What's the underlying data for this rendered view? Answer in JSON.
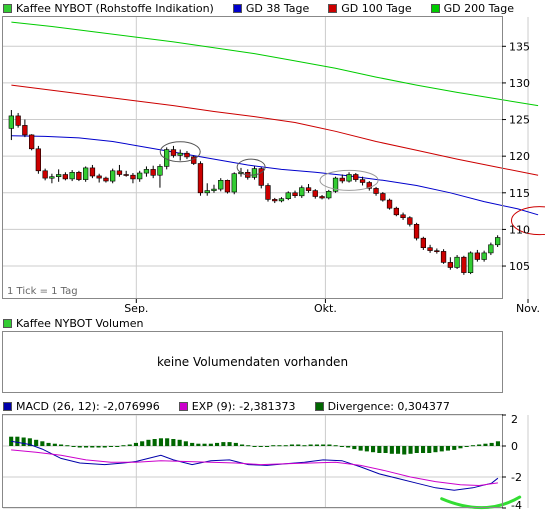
{
  "colors": {
    "price_up": "#33cc33",
    "price_down": "#cc0000",
    "gd38": "#0000cc",
    "gd100": "#cc0000",
    "gd200": "#00cc00",
    "volume_swatch": "#33cc33",
    "macd": "#0000aa",
    "exp": "#cc00cc",
    "divergence": "#006600",
    "annotation_gray": "#555555",
    "annotation_red": "#cc0000",
    "annotation_green": "#33dd33",
    "grid": "#cccccc"
  },
  "top_legend": [
    {
      "label": "Kaffee NYBOT (Rohstoffe Indikation)",
      "color": "#33cc33"
    },
    {
      "label": "GD 38 Tage",
      "color": "#0000cc"
    },
    {
      "label": "GD 100 Tage",
      "color": "#cc0000"
    },
    {
      "label": "GD 200 Tage",
      "color": "#00cc00"
    }
  ],
  "volume_legend": {
    "label": "Kaffee NYBOT Volumen",
    "color": "#33cc33"
  },
  "macd_legend": [
    {
      "label": "MACD (26, 12): -2,076996",
      "color": "#0000aa"
    },
    {
      "label": "EXP (9): -2,381373",
      "color": "#cc00cc"
    },
    {
      "label": "Divergence: 0,304377",
      "color": "#006600"
    }
  ],
  "tick_note": "1 Tick = 1 Tag",
  "volume_message": "keine Volumendaten vorhanden",
  "chart_data": [
    {
      "type": "candlestick",
      "title": "Kaffee NYBOT (Rohstoffe Indikation)",
      "x_tick_labels": [
        {
          "label": "Sep.",
          "index": 18
        },
        {
          "label": "Okt.",
          "index": 46
        },
        {
          "label": "Nov.",
          "index": 76
        }
      ],
      "y_ticks": [
        105,
        110,
        115,
        120,
        125,
        130,
        135
      ],
      "ylim": [
        100.5,
        139
      ],
      "grid": true,
      "candles": [
        [
          123.8,
          126.3,
          122.2,
          125.5
        ],
        [
          125.5,
          125.9,
          123.9,
          124.2
        ],
        [
          124.2,
          125.0,
          122.6,
          122.9
        ],
        [
          122.9,
          123.0,
          120.8,
          121.0
        ],
        [
          121.0,
          121.4,
          117.6,
          118.0
        ],
        [
          118.0,
          118.3,
          116.7,
          117.0
        ],
        [
          117.0,
          117.6,
          116.3,
          117.2
        ],
        [
          117.2,
          118.2,
          116.5,
          117.5
        ],
        [
          117.5,
          117.8,
          116.7,
          116.9
        ],
        [
          116.9,
          118.1,
          116.6,
          117.8
        ],
        [
          117.8,
          118.0,
          116.6,
          116.8
        ],
        [
          116.8,
          118.6,
          116.5,
          118.4
        ],
        [
          118.4,
          118.8,
          117.0,
          117.3
        ],
        [
          117.3,
          117.6,
          116.4,
          117.0
        ],
        [
          117.0,
          117.2,
          116.4,
          116.6
        ],
        [
          116.6,
          118.3,
          116.3,
          118.0
        ],
        [
          118.0,
          118.8,
          117.2,
          117.5
        ],
        [
          117.5,
          118.0,
          117.2,
          117.4
        ],
        [
          117.4,
          117.7,
          116.3,
          116.9
        ],
        [
          116.9,
          118.0,
          116.5,
          117.7
        ],
        [
          117.7,
          118.6,
          117.2,
          118.2
        ],
        [
          118.2,
          118.7,
          117.0,
          117.4
        ],
        [
          117.4,
          118.9,
          115.7,
          118.6
        ],
        [
          118.6,
          121.2,
          118.2,
          120.9
        ],
        [
          120.9,
          121.4,
          119.8,
          120.1
        ],
        [
          120.1,
          120.9,
          119.4,
          120.4
        ],
        [
          120.4,
          120.7,
          119.6,
          119.9
        ],
        [
          119.9,
          120.1,
          118.8,
          119.0
        ],
        [
          119.0,
          119.3,
          114.6,
          115.0
        ],
        [
          115.0,
          116.3,
          114.6,
          115.3
        ],
        [
          115.3,
          116.1,
          115.0,
          115.5
        ],
        [
          115.5,
          117.0,
          115.2,
          116.7
        ],
        [
          116.7,
          116.8,
          114.9,
          115.1
        ],
        [
          115.1,
          117.8,
          114.8,
          117.6
        ],
        [
          117.6,
          118.4,
          117.2,
          117.8
        ],
        [
          117.8,
          118.2,
          116.8,
          117.1
        ],
        [
          117.1,
          118.6,
          116.8,
          118.3
        ],
        [
          118.3,
          118.5,
          115.6,
          116.0
        ],
        [
          116.0,
          116.3,
          113.8,
          114.1
        ],
        [
          114.1,
          114.3,
          113.6,
          113.9
        ],
        [
          113.9,
          114.4,
          113.7,
          114.2
        ],
        [
          114.2,
          115.2,
          114.0,
          115.0
        ],
        [
          115.0,
          115.3,
          114.3,
          114.6
        ],
        [
          114.6,
          116.0,
          114.3,
          115.7
        ],
        [
          115.7,
          116.2,
          115.0,
          115.3
        ],
        [
          115.3,
          115.5,
          114.2,
          114.5
        ],
        [
          114.5,
          114.7,
          114.1,
          114.3
        ],
        [
          114.3,
          115.4,
          114.1,
          115.2
        ],
        [
          115.2,
          117.2,
          115.0,
          117.0
        ],
        [
          117.0,
          117.5,
          116.3,
          116.6
        ],
        [
          116.6,
          117.8,
          116.4,
          117.5
        ],
        [
          117.5,
          117.7,
          116.5,
          116.8
        ],
        [
          116.8,
          117.2,
          116.0,
          116.4
        ],
        [
          116.4,
          116.6,
          115.3,
          115.6
        ],
        [
          115.6,
          115.8,
          114.6,
          114.9
        ],
        [
          114.9,
          115.1,
          113.8,
          114.0
        ],
        [
          114.0,
          114.2,
          112.7,
          112.9
        ],
        [
          112.9,
          113.1,
          111.8,
          112.0
        ],
        [
          112.0,
          112.3,
          111.3,
          111.6
        ],
        [
          111.6,
          111.8,
          110.4,
          110.7
        ],
        [
          110.7,
          110.9,
          108.5,
          108.8
        ],
        [
          108.8,
          109.0,
          107.2,
          107.5
        ],
        [
          107.5,
          107.9,
          106.8,
          107.1
        ],
        [
          107.1,
          107.4,
          106.7,
          107.0
        ],
        [
          107.0,
          107.3,
          105.3,
          105.5
        ],
        [
          105.5,
          106.2,
          104.5,
          104.8
        ],
        [
          104.8,
          106.5,
          104.6,
          106.2
        ],
        [
          106.2,
          106.4,
          103.8,
          104.1
        ],
        [
          104.1,
          107.0,
          103.9,
          106.8
        ],
        [
          106.8,
          107.2,
          105.6,
          105.9
        ],
        [
          105.9,
          107.1,
          105.6,
          106.8
        ],
        [
          106.8,
          108.2,
          106.5,
          107.9
        ],
        [
          107.9,
          109.2,
          107.6,
          108.9
        ]
      ],
      "series": [
        {
          "name": "GD 38 Tage",
          "color": "#0000cc",
          "points": [
            [
              0,
              122.8
            ],
            [
              5,
              122.7
            ],
            [
              10,
              122.5
            ],
            [
              15,
              122.0
            ],
            [
              20,
              121.2
            ],
            [
              25,
              120.4
            ],
            [
              30,
              119.6
            ],
            [
              35,
              118.8
            ],
            [
              40,
              118.2
            ],
            [
              45,
              117.8
            ],
            [
              50,
              117.3
            ],
            [
              55,
              116.7
            ],
            [
              60,
              116.0
            ],
            [
              65,
              115.0
            ],
            [
              70,
              113.8
            ],
            [
              75,
              112.8
            ],
            [
              78,
              112.0
            ]
          ]
        },
        {
          "name": "GD 100 Tage",
          "color": "#cc0000",
          "points": [
            [
              0,
              129.7
            ],
            [
              6,
              129.0
            ],
            [
              12,
              128.3
            ],
            [
              18,
              127.6
            ],
            [
              24,
              126.9
            ],
            [
              30,
              126.1
            ],
            [
              36,
              125.4
            ],
            [
              42,
              124.6
            ],
            [
              48,
              123.4
            ],
            [
              54,
              122.0
            ],
            [
              60,
              120.8
            ],
            [
              66,
              119.6
            ],
            [
              72,
              118.5
            ],
            [
              78,
              117.4
            ]
          ]
        },
        {
          "name": "GD 200 Tage",
          "color": "#00cc00",
          "points": [
            [
              0,
              138.3
            ],
            [
              6,
              137.7
            ],
            [
              12,
              137.0
            ],
            [
              18,
              136.3
            ],
            [
              24,
              135.6
            ],
            [
              30,
              134.8
            ],
            [
              36,
              134.0
            ],
            [
              42,
              133.0
            ],
            [
              48,
              132.0
            ],
            [
              54,
              130.8
            ],
            [
              60,
              129.7
            ],
            [
              66,
              128.7
            ],
            [
              72,
              127.8
            ],
            [
              78,
              126.9
            ]
          ]
        }
      ]
    },
    {
      "type": "area",
      "title": "Kaffee NYBOT Volumen",
      "values": [],
      "annotation": "keine Volumendaten vorhanden"
    },
    {
      "type": "line",
      "title": "MACD",
      "y_ticks": [
        2,
        0,
        -2,
        -4
      ],
      "y_tick_labels": [
        "2",
        "0",
        "-2",
        "-4"
      ],
      "ylim": [
        -4,
        2
      ],
      "grid": true,
      "series": [
        {
          "name": "MACD (26, 12)",
          "color": "#0000aa",
          "points": [
            [
              0,
              0.3
            ],
            [
              3,
              0.1
            ],
            [
              5,
              -0.2
            ],
            [
              8,
              -0.8
            ],
            [
              11,
              -1.1
            ],
            [
              15,
              -1.2
            ],
            [
              18,
              -1.1
            ],
            [
              20,
              -1.0
            ],
            [
              22,
              -0.8
            ],
            [
              24,
              -0.6
            ],
            [
              26,
              -0.9
            ],
            [
              29,
              -1.2
            ],
            [
              32,
              -0.95
            ],
            [
              35,
              -0.9
            ],
            [
              38,
              -1.2
            ],
            [
              41,
              -1.25
            ],
            [
              44,
              -1.15
            ],
            [
              47,
              -1.05
            ],
            [
              50,
              -0.9
            ],
            [
              53,
              -0.95
            ],
            [
              56,
              -1.35
            ],
            [
              59,
              -1.8
            ],
            [
              62,
              -2.1
            ],
            [
              65,
              -2.4
            ],
            [
              68,
              -2.7
            ],
            [
              71,
              -2.85
            ],
            [
              74,
              -2.7
            ],
            [
              77,
              -2.4
            ],
            [
              78,
              -2.08
            ]
          ]
        },
        {
          "name": "EXP (9)",
          "color": "#cc00cc",
          "points": [
            [
              0,
              -0.25
            ],
            [
              4,
              -0.4
            ],
            [
              8,
              -0.6
            ],
            [
              12,
              -0.9
            ],
            [
              16,
              -1.05
            ],
            [
              20,
              -1.05
            ],
            [
              24,
              -0.95
            ],
            [
              28,
              -1.0
            ],
            [
              32,
              -1.05
            ],
            [
              36,
              -1.1
            ],
            [
              40,
              -1.2
            ],
            [
              44,
              -1.15
            ],
            [
              48,
              -1.1
            ],
            [
              52,
              -1.05
            ],
            [
              56,
              -1.25
            ],
            [
              60,
              -1.6
            ],
            [
              64,
              -2.0
            ],
            [
              68,
              -2.3
            ],
            [
              72,
              -2.5
            ],
            [
              75,
              -2.55
            ],
            [
              78,
              -2.38
            ]
          ]
        }
      ],
      "divergence": [
        0.6,
        0.6,
        0.55,
        0.5,
        0.4,
        0.3,
        0.2,
        0.15,
        0.1,
        0.05,
        -0.05,
        -0.1,
        -0.1,
        -0.1,
        -0.1,
        -0.1,
        -0.05,
        0,
        0.05,
        0.1,
        0.2,
        0.3,
        0.4,
        0.45,
        0.5,
        0.5,
        0.45,
        0.4,
        0.3,
        0.2,
        0.15,
        0.15,
        0.15,
        0.2,
        0.25,
        0.25,
        0.2,
        0.1,
        0.05,
        0.0,
        0.0,
        0.0,
        0.05,
        0.05,
        0.05,
        0.1,
        0.1,
        0.05,
        0.1,
        0.1,
        0.1,
        0.1,
        0.05,
        0.0,
        -0.1,
        -0.2,
        -0.3,
        -0.35,
        -0.4,
        -0.45,
        -0.45,
        -0.5,
        -0.5,
        -0.55,
        -0.5,
        -0.45,
        -0.45,
        -0.45,
        -0.4,
        -0.35,
        -0.3,
        -0.25,
        -0.15,
        -0.05,
        0.05,
        0.1,
        0.15,
        0.2,
        0.3
      ]
    }
  ]
}
